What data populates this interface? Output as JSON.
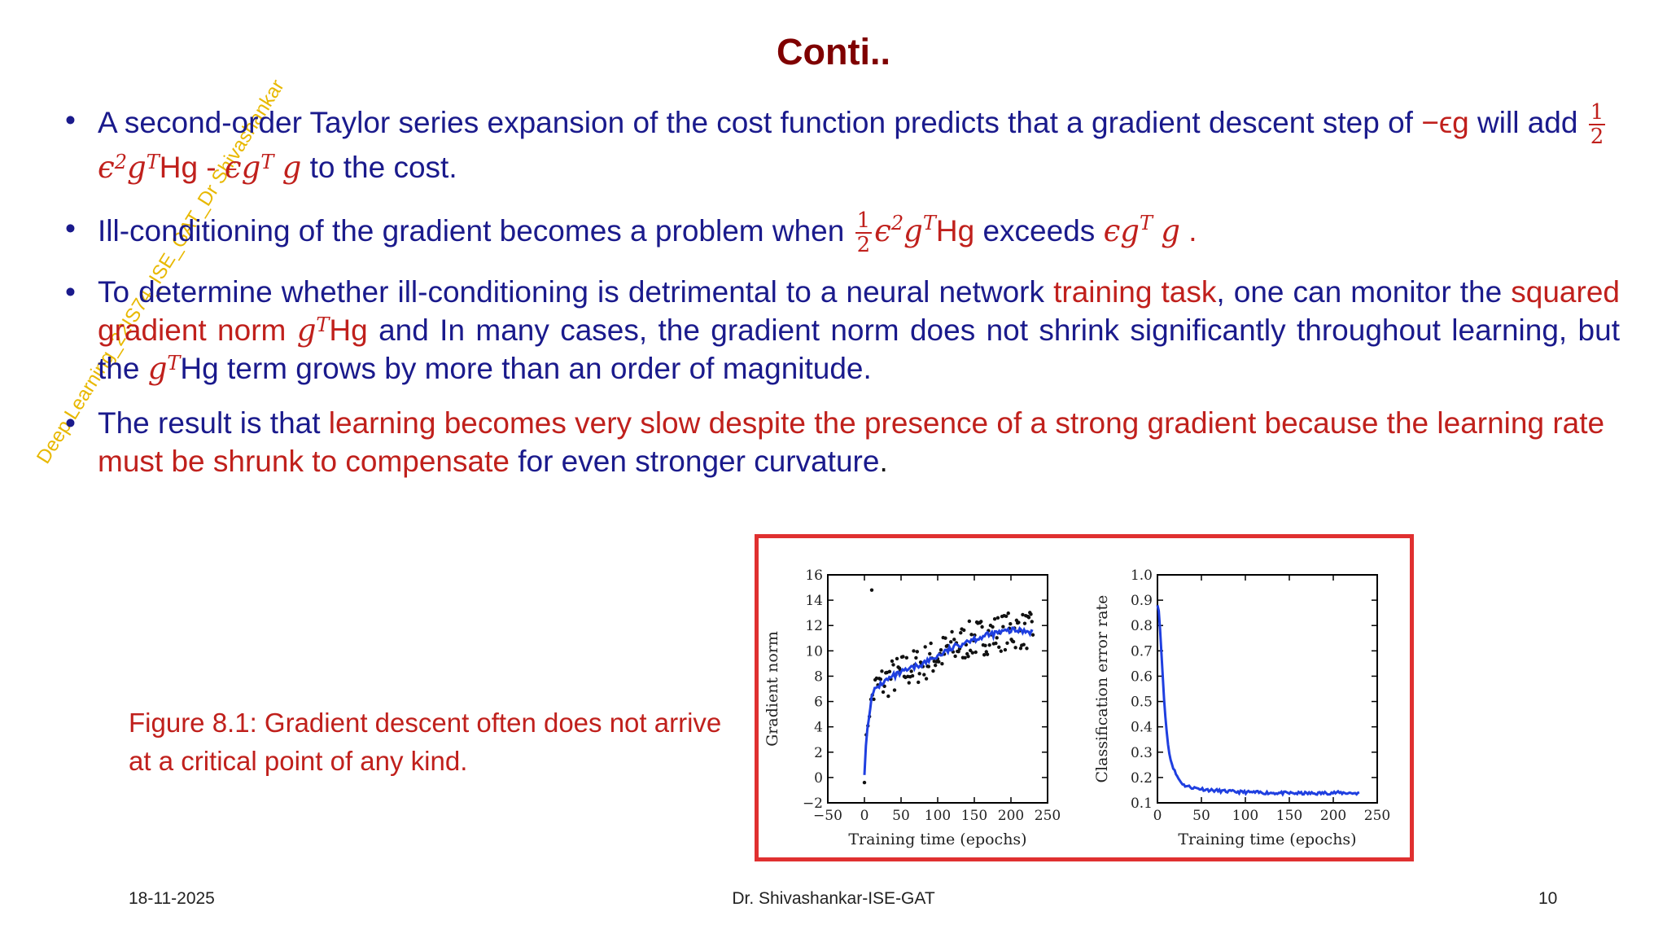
{
  "slide": {
    "title": "Conti..",
    "watermark": "Deep Learning_22IS74_ISE_GAT_Dr Shivashankar"
  },
  "bullets": {
    "b1": {
      "t1": "A second-order Taylor series expansion of the cost function predicts that a gradient descent step of",
      "t2": "−ϵg",
      "t3": " will add ",
      "frac_num": "1",
      "frac_den": "2",
      "t4": "ϵ",
      "t4sup": "2",
      "t5": "g",
      "t5sup": "T",
      "t6": "Hg",
      "t7": " - ",
      "t8": "ϵg",
      "t8sup": "T",
      "t9": "g",
      "t10": " to the cost."
    },
    "b2": {
      "t1": "Ill-conditioning of the gradient becomes a problem when ",
      "frac_num": "1",
      "frac_den": "2",
      "t2": "ϵ",
      "t2sup": "2",
      "t3": "g",
      "t3sup": "T",
      "t4": "Hg",
      "t5": " exceeds ",
      "t6": "ϵg",
      "t6sup": "T",
      "t7": "g",
      "t8": " ."
    },
    "b3": {
      "t1": "To determine whether ill-conditioning is detrimental to a neural network ",
      "t2": "training task",
      "t3": ", one can monitor the ",
      "t4": "squared gradient norm ",
      "t5": "g",
      "t5sup": "T",
      "t6": "Hg",
      "t7": " and In many cases, the gradient norm does not shrink significantly throughout learning, but the ",
      "t8": "g",
      "t8sup": "T",
      "t9": "Hg term grows by more than an order of magnitude."
    },
    "b4": {
      "t1": "The result is that ",
      "t2": "learning becomes very slow despite the presence of a strong gradient because the learning rate must be shrunk to compensate",
      "t3": " for even stronger curvature",
      "t4": "."
    }
  },
  "figure": {
    "caption": "Figure 8.1: Gradient descent often does not arrive at a critical point of any kind.",
    "border_color": "#e03030",
    "line_color": "#1f3fe0"
  },
  "chart_data": [
    {
      "type": "scatter",
      "xlabel": "Training time (epochs)",
      "ylabel": "Gradient norm",
      "xlim": [
        -50,
        250
      ],
      "ylim": [
        -2,
        16
      ],
      "xticks": [
        "−50",
        "0",
        "50",
        "100",
        "150",
        "200",
        "250"
      ],
      "yticks": [
        "−2",
        "0",
        "2",
        "4",
        "6",
        "8",
        "10",
        "12",
        "14",
        "16"
      ],
      "trend": {
        "x": [
          0,
          2,
          5,
          10,
          15,
          25,
          40,
          60,
          80,
          100,
          120,
          140,
          160,
          180,
          200,
          220,
          230
        ],
        "y": [
          0.2,
          2.5,
          4.5,
          6.3,
          7.0,
          7.5,
          8.0,
          8.5,
          9.0,
          9.6,
          10.2,
          10.8,
          11.1,
          11.4,
          11.6,
          11.6,
          11.5
        ]
      },
      "scatter": {
        "x_start": 0,
        "x_end": 230,
        "points": 150,
        "outlier": [
          10,
          14.8
        ]
      }
    },
    {
      "type": "line",
      "xlabel": "Training time (epochs)",
      "ylabel": "Classification error rate",
      "xlim": [
        0,
        250
      ],
      "ylim": [
        0.1,
        1.0
      ],
      "xticks": [
        "0",
        "50",
        "100",
        "150",
        "200",
        "250"
      ],
      "yticks": [
        "0.1",
        "0.2",
        "0.3",
        "0.4",
        "0.5",
        "0.6",
        "0.7",
        "0.8",
        "0.9",
        "1.0"
      ],
      "x": [
        0,
        2,
        4,
        6,
        8,
        10,
        12,
        15,
        20,
        25,
        30,
        40,
        50,
        60,
        80,
        100,
        120,
        150,
        180,
        200,
        230
      ],
      "y": [
        0.88,
        0.85,
        0.72,
        0.6,
        0.48,
        0.4,
        0.33,
        0.27,
        0.22,
        0.19,
        0.17,
        0.16,
        0.155,
        0.15,
        0.145,
        0.142,
        0.14,
        0.138,
        0.137,
        0.14,
        0.138
      ]
    }
  ],
  "footer": {
    "date": "18-11-2025",
    "author": "Dr. Shivashankar-ISE-GAT",
    "page": "10"
  }
}
